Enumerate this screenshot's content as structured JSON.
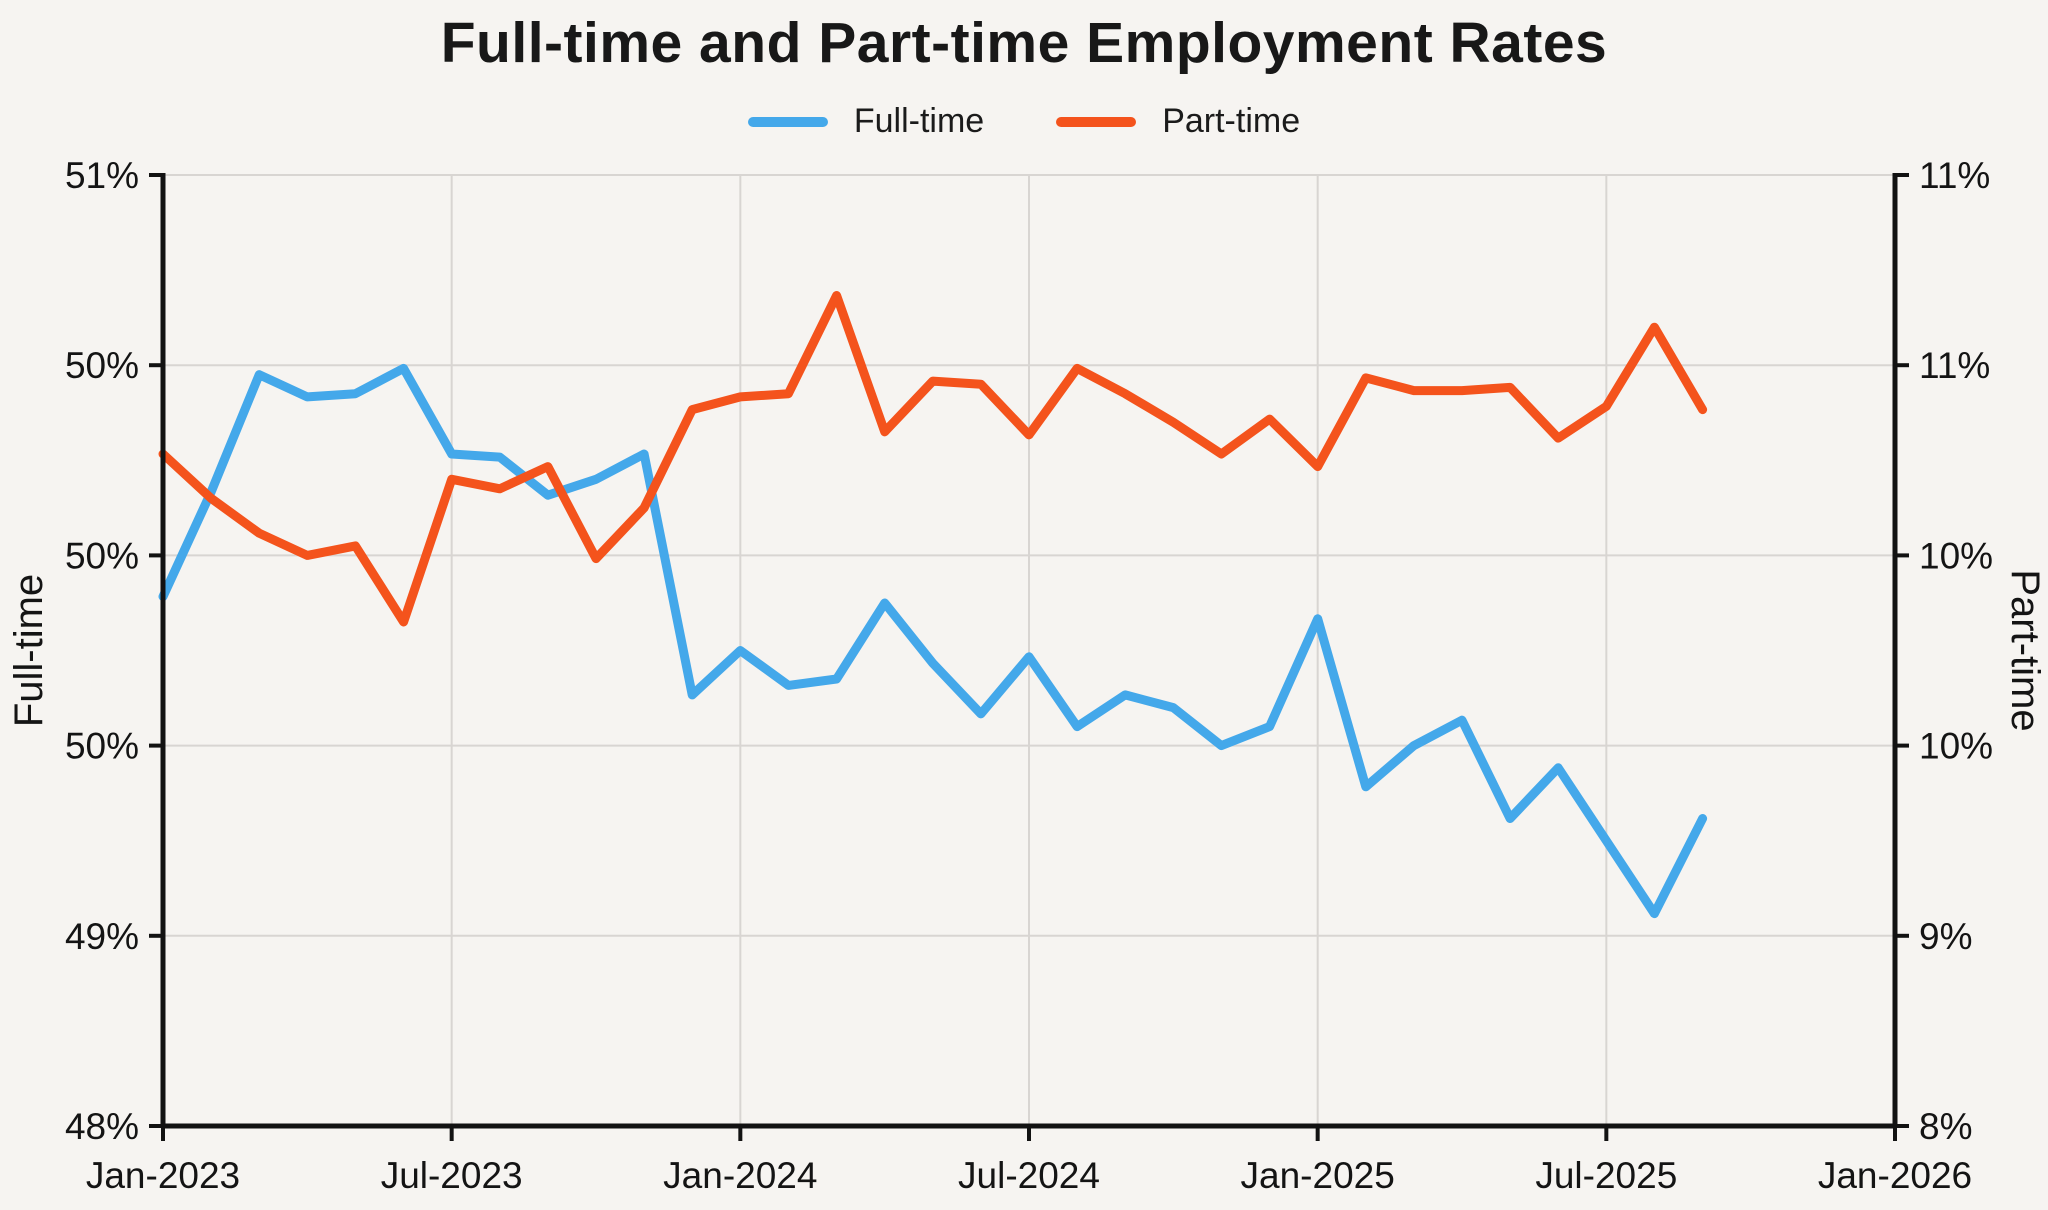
{
  "title": "Full-time and Part-time Employment Rates",
  "legend": [
    {
      "label": "Full-time",
      "color": "#44a8ea"
    },
    {
      "label": "Part-time",
      "color": "#f4531c"
    }
  ],
  "left_axis": {
    "title": "Full-time",
    "tick_labels": [
      "51%",
      "50%",
      "50%",
      "50%",
      "49%",
      "48%"
    ]
  },
  "right_axis": {
    "title": "Part-time",
    "tick_labels": [
      "11%",
      "11%",
      "10%",
      "10%",
      "9%",
      "8%"
    ]
  },
  "x_axis": {
    "tick_labels": [
      "Jan-2023",
      "Jul-2023",
      "Jan-2024",
      "Jul-2024",
      "Jan-2025",
      "Jul-2025",
      "Jan-2026"
    ]
  },
  "chart_data": {
    "type": "line",
    "title": "Full-time and Part-time Employment Rates",
    "x": [
      "Jan-2023",
      "Feb-2023",
      "Mar-2023",
      "Apr-2023",
      "May-2023",
      "Jun-2023",
      "Jul-2023",
      "Aug-2023",
      "Sep-2023",
      "Oct-2023",
      "Nov-2023",
      "Dec-2023",
      "Jan-2024",
      "Feb-2024",
      "Mar-2024",
      "Apr-2024",
      "May-2024",
      "Jun-2024",
      "Jul-2024",
      "Aug-2024",
      "Sep-2024",
      "Oct-2024",
      "Nov-2024",
      "Dec-2024",
      "Jan-2025",
      "Feb-2025",
      "Mar-2025",
      "Apr-2025",
      "May-2025",
      "Jun-2025",
      "Jul-2025",
      "Aug-2025",
      "Sep-2025"
    ],
    "x_range_months": [
      "Jan-2023",
      "Jan-2026"
    ],
    "series": [
      {
        "name": "Full-time",
        "axis": "left",
        "color": "#44a8ea",
        "values": [
          49.67,
          50.0,
          50.37,
          50.3,
          50.31,
          50.39,
          50.12,
          50.11,
          49.99,
          50.04,
          50.12,
          49.36,
          49.5,
          49.39,
          49.41,
          49.65,
          49.46,
          49.3,
          49.48,
          49.26,
          49.36,
          49.32,
          49.2,
          49.26,
          49.6,
          49.07,
          49.2,
          49.28,
          48.97,
          49.13,
          48.9,
          48.67,
          48.97
        ]
      },
      {
        "name": "Part-time",
        "axis": "right",
        "color": "#f4531c",
        "values": [
          10.12,
          9.98,
          9.87,
          9.8,
          9.83,
          9.59,
          10.04,
          10.01,
          10.08,
          9.79,
          9.95,
          10.26,
          10.3,
          10.31,
          10.62,
          10.19,
          10.35,
          10.34,
          10.18,
          10.39,
          10.31,
          10.22,
          10.12,
          10.23,
          10.08,
          10.36,
          10.32,
          10.32,
          10.33,
          10.17,
          10.27,
          10.52,
          10.26
        ]
      }
    ],
    "left_ylim": [
      48,
      51
    ],
    "right_ylim": [
      8,
      11
    ],
    "ylabel_left": "Full-time",
    "ylabel_right": "Part-time",
    "grid": true,
    "legend_position": "top-center"
  },
  "colors": {
    "background": "#f6f4f1",
    "gridline": "#d8d5d2",
    "spine": "#121212",
    "text": "#141414"
  }
}
